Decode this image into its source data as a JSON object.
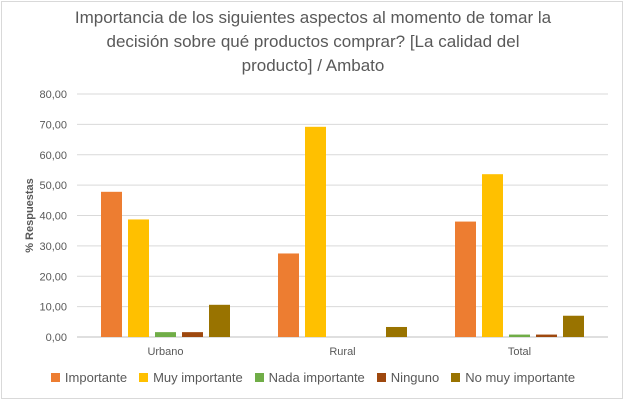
{
  "chart_data": {
    "type": "bar",
    "title_lines": [
      "Importancia de los siguientes aspectos al momento de tomar la",
      "decisión sobre qué productos comprar? [La calidad del",
      "producto] / Ambato"
    ],
    "ylabel": "% Respuestas",
    "xlabel": "",
    "ylim": [
      0,
      80
    ],
    "yticks": [
      "0,00",
      "10,00",
      "20,00",
      "30,00",
      "40,00",
      "50,00",
      "60,00",
      "70,00",
      "80,00"
    ],
    "categories": [
      "Urbano",
      "Rural",
      "Total"
    ],
    "grid": true,
    "legend_position": "bottom",
    "series": [
      {
        "name": "Importante",
        "color": "#ed7d31",
        "values": [
          47.8,
          27.5,
          38.0
        ]
      },
      {
        "name": "Muy importante",
        "color": "#ffc000",
        "values": [
          38.7,
          69.2,
          53.6
        ]
      },
      {
        "name": "Nada importante",
        "color": "#70ad47",
        "values": [
          1.6,
          0.0,
          0.8
        ]
      },
      {
        "name": "Ninguno",
        "color": "#9e480e",
        "values": [
          1.6,
          0.0,
          0.8
        ]
      },
      {
        "name": "No muy importante",
        "color": "#997300",
        "values": [
          10.6,
          3.3,
          7.0
        ]
      }
    ]
  }
}
